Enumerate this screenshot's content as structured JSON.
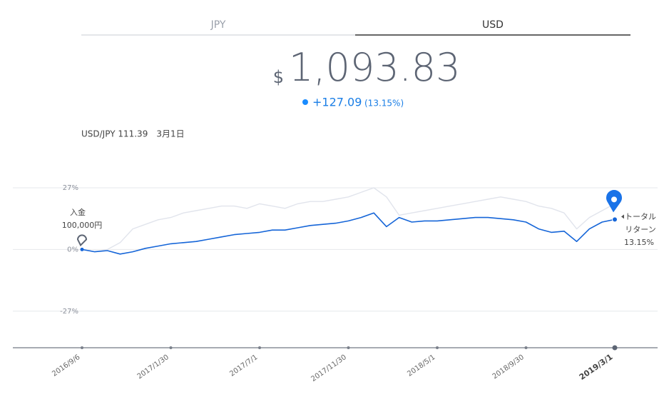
{
  "tabs": [
    "JPY",
    "USD"
  ],
  "balance": {
    "currency": "$",
    "amount": "1,093.83",
    "change": "+127.09",
    "change_pct": "(13.15%)"
  },
  "fx_note": "USD/JPY 111.39　3月1日",
  "chart_data": {
    "type": "line",
    "categories": [
      "2016/9/6",
      null,
      null,
      null,
      null,
      null,
      null,
      "2017/1/30",
      null,
      null,
      null,
      null,
      null,
      null,
      "2017/7/1",
      null,
      null,
      null,
      null,
      null,
      null,
      "2017/11/30",
      null,
      null,
      null,
      null,
      null,
      null,
      "2018/5/1",
      null,
      null,
      null,
      null,
      null,
      null,
      "2018/9/30",
      null,
      null,
      null,
      null,
      null,
      null,
      "2019/3/1"
    ],
    "series": [
      {
        "color": "#e1e4ec",
        "values": [
          0,
          -1,
          0,
          3,
          9,
          11,
          13,
          14,
          16,
          17,
          18,
          19,
          19,
          18,
          20,
          19,
          18,
          20,
          21,
          21,
          22,
          23,
          25,
          27,
          23,
          15,
          16,
          17,
          18,
          19,
          20,
          21,
          22,
          23,
          22,
          21,
          19,
          18,
          16,
          9,
          14,
          17,
          20
        ]
      },
      {
        "color": "#1565d8",
        "values": [
          0,
          -1,
          -0.5,
          -2,
          -1,
          0.5,
          1.5,
          2.5,
          3,
          3.5,
          4.5,
          5.5,
          6.5,
          7,
          7.5,
          8.5,
          8.5,
          9.5,
          10.5,
          11,
          11.5,
          12.5,
          14,
          16,
          10,
          14,
          12,
          12.5,
          12.5,
          13,
          13.5,
          14,
          14,
          13.5,
          13,
          12,
          9,
          7.5,
          8,
          3.5,
          9,
          12,
          13.15
        ]
      }
    ],
    "ylim": [
      -43,
      32
    ],
    "yticks": [
      {
        "value": 27,
        "label": "27%"
      },
      {
        "value": 0,
        "label": "0%"
      },
      {
        "value": -27,
        "label": "-27%"
      }
    ],
    "grid": true,
    "start_annotation": [
      "入金",
      "100,000円"
    ],
    "end_annotation": [
      "トータル",
      "リターン",
      "13.15%"
    ]
  }
}
